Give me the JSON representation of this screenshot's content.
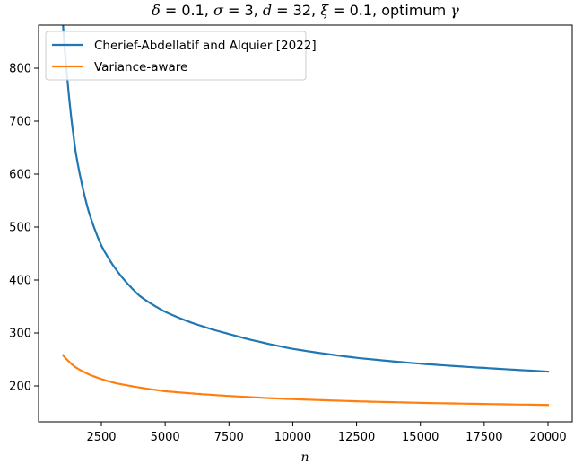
{
  "chart_data": {
    "type": "line",
    "title": "δ = 0.1, σ = 3, d = 32, ξ = 0.1, optimum γ",
    "xlabel": "n",
    "ylabel": "",
    "xlim": [
      0,
      20700
    ],
    "ylim": [
      130,
      880
    ],
    "x_ticks": [
      2500,
      5000,
      7500,
      10000,
      12500,
      15000,
      17500,
      20000
    ],
    "y_ticks": [
      200,
      300,
      400,
      500,
      600,
      700,
      800
    ],
    "grid": false,
    "legend_position": "upper left",
    "x": [
      1000,
      1500,
      2000,
      2500,
      3000,
      4000,
      5000,
      6000,
      7500,
      10000,
      12500,
      15000,
      17500,
      20000
    ],
    "series": [
      {
        "name": "Cherief-Abdellatif and Alquier [2022]",
        "color": "#1f77b4",
        "values": [
          880,
          640,
          530,
          465,
          425,
          370,
          340,
          320,
          298,
          270,
          253,
          242,
          234,
          227
        ]
      },
      {
        "name": "Variance-aware",
        "color": "#ff7f0e",
        "values": [
          258,
          235,
          222,
          213,
          206,
          197,
          190,
          186,
          181,
          175,
          171,
          168,
          166,
          164
        ]
      }
    ]
  },
  "title_parts": {
    "delta_sym": "δ",
    "delta_val": " = 0.1, ",
    "sigma_sym": "σ",
    "sigma_val": " = 3, ",
    "d_sym": "d",
    "d_val": " = 32, ",
    "xi_sym": "ξ",
    "xi_val": " = 0.1, optimum ",
    "gamma_sym": "γ"
  }
}
